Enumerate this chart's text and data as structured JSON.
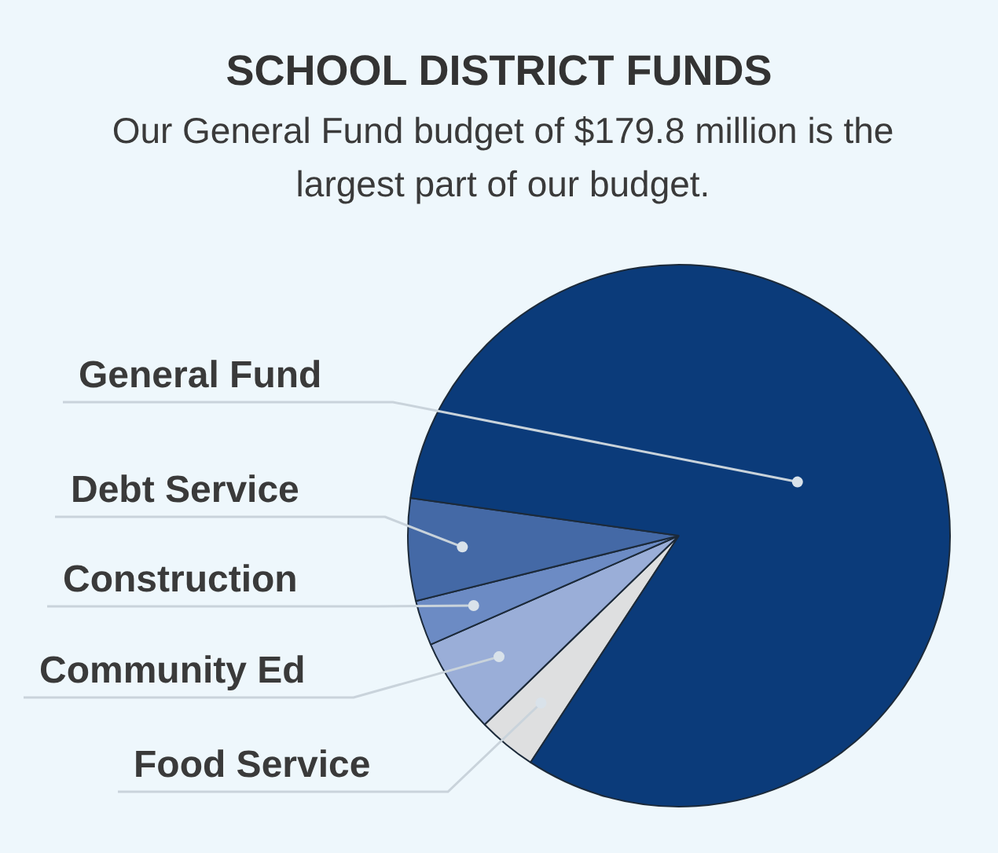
{
  "chart_data": {
    "type": "pie",
    "title": "SCHOOL DISTRICT FUNDS",
    "subtitle": "Our General Fund budget of $179.8 million is the largest part of our budget.",
    "categories": [
      "General Fund",
      "Debt Service",
      "Construction",
      "Community Ed",
      "Food Service"
    ],
    "values": [
      82.0,
      6.1,
      2.7,
      5.7,
      3.5
    ],
    "colors": [
      "#0b3b7a",
      "#4469a6",
      "#6c8bc4",
      "#9aaed8",
      "#dedfe0"
    ],
    "legend": false
  }
}
